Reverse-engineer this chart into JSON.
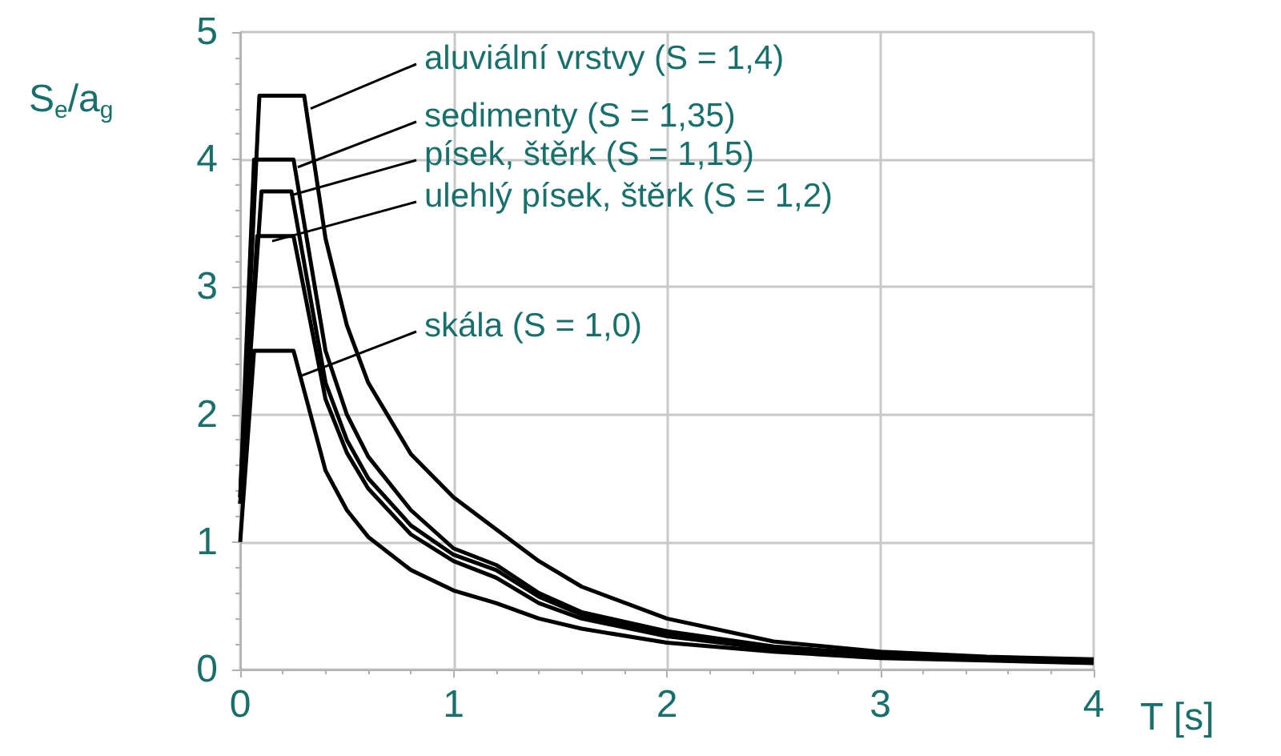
{
  "chart_data": {
    "type": "line",
    "xlabel": "T [s]",
    "ylabel": "S$_{e}$/a$_{g}$",
    "xlim": [
      0,
      4
    ],
    "xticks": [
      0,
      1,
      2,
      3,
      4
    ],
    "ylim": [
      0,
      5
    ],
    "yticks": [
      0,
      1,
      2,
      3,
      4,
      5
    ],
    "grid": true,
    "marker": "none",
    "line_style": "solid",
    "series": [
      {
        "color": "#000000",
        "x": [
          0,
          0.09,
          0.3,
          0.4,
          0.5,
          0.6,
          0.8,
          1.0,
          1.2,
          1.4,
          1.6,
          2.0,
          2.5,
          3.0,
          3.5,
          4.0
        ],
        "values": [
          1.35,
          4.5,
          4.5,
          3.38,
          2.7,
          2.25,
          1.69,
          1.35,
          1.1,
          0.85,
          0.65,
          0.4,
          0.22,
          0.14,
          0.1,
          0.08
        ]
      },
      {
        "color": "#000000",
        "x": [
          0,
          0.065,
          0.25,
          0.4,
          0.5,
          0.6,
          0.8,
          1.0,
          1.2,
          1.4,
          1.6,
          2.0,
          2.5,
          3.0,
          3.5,
          4.0
        ],
        "values": [
          1.35,
          4.0,
          4.0,
          2.5,
          2.0,
          1.67,
          1.25,
          0.95,
          0.82,
          0.6,
          0.45,
          0.3,
          0.18,
          0.12,
          0.09,
          0.07
        ]
      },
      {
        "color": "#000000",
        "x": [
          0,
          0.1,
          0.24,
          0.4,
          0.5,
          0.6,
          0.8,
          1.0,
          1.2,
          1.4,
          1.6,
          2.0,
          2.5,
          3.0,
          3.5,
          4.0
        ],
        "values": [
          1.3,
          3.75,
          3.75,
          2.25,
          1.8,
          1.5,
          1.13,
          0.9,
          0.78,
          0.57,
          0.43,
          0.28,
          0.17,
          0.11,
          0.08,
          0.07
        ]
      },
      {
        "color": "#000000",
        "x": [
          0,
          0.08,
          0.25,
          0.4,
          0.5,
          0.6,
          0.8,
          1.0,
          1.2,
          1.4,
          1.6,
          2.0,
          2.5,
          3.0,
          3.5,
          4.0
        ],
        "values": [
          1.3,
          3.4,
          3.4,
          2.12,
          1.7,
          1.42,
          1.06,
          0.85,
          0.72,
          0.52,
          0.4,
          0.26,
          0.16,
          0.1,
          0.08,
          0.06
        ]
      },
      {
        "color": "#000000",
        "x": [
          0,
          0.065,
          0.25,
          0.4,
          0.5,
          0.6,
          0.8,
          1.0,
          1.2,
          1.4,
          1.6,
          2.0,
          2.5,
          3.0,
          3.5,
          4.0
        ],
        "values": [
          1.0,
          2.5,
          2.5,
          1.56,
          1.25,
          1.04,
          0.78,
          0.62,
          0.52,
          0.4,
          0.32,
          0.21,
          0.14,
          0.09,
          0.07,
          0.05
        ]
      }
    ],
    "annotations": [
      {
        "text": "aluviální vrstvy (S = 1,4)",
        "x": 0.33,
        "y": 4.4
      },
      {
        "text": "sedimenty (S = 1,35)",
        "x": 0.27,
        "y": 3.94
      },
      {
        "text": "písek, štěrk (S = 1,15)",
        "x": 0.24,
        "y": 3.72
      },
      {
        "text": "ulehlý písek, štěrk (S = 1,2)",
        "x": 0.15,
        "y": 3.36
      },
      {
        "text": "skála (S = 1,0)",
        "x": 0.28,
        "y": 2.3
      }
    ]
  }
}
